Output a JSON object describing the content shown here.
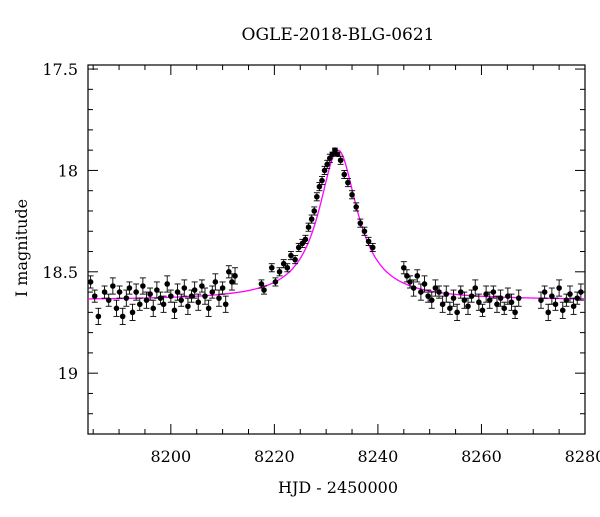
{
  "chart_data": {
    "type": "scatter",
    "title": "OGLE-2018-BLG-0621",
    "xlabel": "HJD - 2450000",
    "ylabel": "I magnitude",
    "xlim": [
      8184,
      8280
    ],
    "ylim": [
      19.3,
      17.48
    ],
    "y_inverted": true,
    "x_ticks": [
      8200,
      8220,
      8240,
      8260,
      8280
    ],
    "x_tick_labels": [
      "8200",
      "8220",
      "8240",
      "8260",
      "8280"
    ],
    "y_ticks": [
      17.5,
      18,
      18.5,
      19
    ],
    "y_tick_labels": [
      "17.5",
      "18",
      "18.5",
      "19"
    ],
    "grid": false,
    "legend": "none",
    "colors": {
      "points": "#000000",
      "model": "#ff00ff",
      "axes": "#000000"
    },
    "model": {
      "baseline": 18.64,
      "t0": 8232.3,
      "peak": 17.9,
      "tE": 4.3,
      "u0_scale": 0.9
    },
    "series": [
      {
        "kind": "points",
        "marker": "filled-circle-with-errorbars",
        "x": [
          8184.5,
          8185.3,
          8186.0,
          8187.2,
          8188.0,
          8188.8,
          8189.5,
          8190.1,
          8190.7,
          8191.4,
          8192.0,
          8192.6,
          8193.3,
          8194.0,
          8194.6,
          8195.3,
          8196.0,
          8196.6,
          8197.3,
          8198.0,
          8198.6,
          8199.3,
          8200.0,
          8200.7,
          8201.3,
          8202.0,
          8202.6,
          8203.3,
          8204.0,
          8204.6,
          8205.3,
          8206.0,
          8206.6,
          8207.3,
          8208.0,
          8208.6,
          8209.3,
          8210.0,
          8210.6,
          8211.2,
          8211.8,
          8212.4,
          8217.5,
          8218.0,
          8219.5,
          8220.2,
          8221.0,
          8221.8,
          8222.5,
          8223.2,
          8224.0,
          8224.7,
          8225.4,
          8226.0,
          8226.6,
          8227.2,
          8227.7,
          8228.2,
          8228.7,
          8229.2,
          8229.7,
          8230.2,
          8230.7,
          8231.2,
          8231.7,
          8232.2,
          8232.8,
          8233.5,
          8234.2,
          8235.0,
          8235.8,
          8236.6,
          8237.4,
          8238.2,
          8239.0,
          8245.0,
          8245.6,
          8246.2,
          8246.9,
          8247.6,
          8248.3,
          8249.0,
          8249.7,
          8250.4,
          8251.1,
          8251.8,
          8252.5,
          8253.2,
          8253.9,
          8254.6,
          8255.3,
          8256.0,
          8256.7,
          8257.4,
          8258.1,
          8258.8,
          8259.5,
          8260.2,
          8260.9,
          8261.6,
          8262.3,
          8263.0,
          8263.7,
          8264.4,
          8265.1,
          8265.8,
          8266.5,
          8267.2,
          8271.5,
          8272.2,
          8272.9,
          8273.6,
          8274.3,
          8275.0,
          8275.7,
          8276.4,
          8277.1,
          8277.8,
          8278.5,
          8279.2
        ],
        "y": [
          18.55,
          18.62,
          18.72,
          18.6,
          18.64,
          18.57,
          18.68,
          18.6,
          18.72,
          18.63,
          18.58,
          18.7,
          18.6,
          18.66,
          18.57,
          18.64,
          18.61,
          18.68,
          18.59,
          18.63,
          18.66,
          18.56,
          18.62,
          18.69,
          18.6,
          18.64,
          18.58,
          18.67,
          18.62,
          18.59,
          18.65,
          18.57,
          18.62,
          18.68,
          18.6,
          18.55,
          18.63,
          18.58,
          18.66,
          18.5,
          18.55,
          18.52,
          18.56,
          18.59,
          18.48,
          18.55,
          18.5,
          18.46,
          18.48,
          18.42,
          18.44,
          18.38,
          18.36,
          18.34,
          18.28,
          18.24,
          18.2,
          18.13,
          18.08,
          18.05,
          18.0,
          17.97,
          17.94,
          17.92,
          17.9,
          17.92,
          17.95,
          18.02,
          18.06,
          18.12,
          18.18,
          18.26,
          18.3,
          18.35,
          18.38,
          18.48,
          18.52,
          18.55,
          18.58,
          18.52,
          18.6,
          18.56,
          18.62,
          18.64,
          18.58,
          18.6,
          18.66,
          18.61,
          18.68,
          18.63,
          18.7,
          18.6,
          18.64,
          18.67,
          18.62,
          18.58,
          18.65,
          18.69,
          18.61,
          18.64,
          18.6,
          18.66,
          18.63,
          18.68,
          18.62,
          18.65,
          18.7,
          18.63,
          18.64,
          18.6,
          18.7,
          18.62,
          18.66,
          18.58,
          18.69,
          18.64,
          18.61,
          18.67,
          18.63,
          18.6
        ],
        "err": [
          0.03,
          0.03,
          0.04,
          0.03,
          0.03,
          0.04,
          0.04,
          0.03,
          0.04,
          0.04,
          0.03,
          0.04,
          0.04,
          0.03,
          0.04,
          0.04,
          0.03,
          0.04,
          0.04,
          0.03,
          0.04,
          0.04,
          0.03,
          0.04,
          0.04,
          0.03,
          0.04,
          0.04,
          0.03,
          0.04,
          0.04,
          0.03,
          0.04,
          0.04,
          0.03,
          0.04,
          0.04,
          0.03,
          0.04,
          0.03,
          0.04,
          0.04,
          0.02,
          0.02,
          0.02,
          0.02,
          0.02,
          0.02,
          0.02,
          0.02,
          0.02,
          0.02,
          0.02,
          0.02,
          0.02,
          0.02,
          0.02,
          0.02,
          0.02,
          0.02,
          0.02,
          0.02,
          0.02,
          0.01,
          0.01,
          0.01,
          0.02,
          0.02,
          0.02,
          0.02,
          0.02,
          0.02,
          0.02,
          0.02,
          0.02,
          0.03,
          0.03,
          0.03,
          0.04,
          0.03,
          0.04,
          0.04,
          0.03,
          0.04,
          0.04,
          0.03,
          0.04,
          0.04,
          0.03,
          0.04,
          0.04,
          0.03,
          0.04,
          0.04,
          0.03,
          0.04,
          0.04,
          0.03,
          0.04,
          0.04,
          0.03,
          0.04,
          0.04,
          0.03,
          0.04,
          0.04,
          0.03,
          0.04,
          0.04,
          0.03,
          0.04,
          0.04,
          0.03,
          0.04,
          0.04,
          0.03,
          0.04,
          0.04,
          0.03,
          0.04
        ]
      },
      {
        "kind": "model-curve",
        "color": "#ff00ff"
      }
    ]
  }
}
